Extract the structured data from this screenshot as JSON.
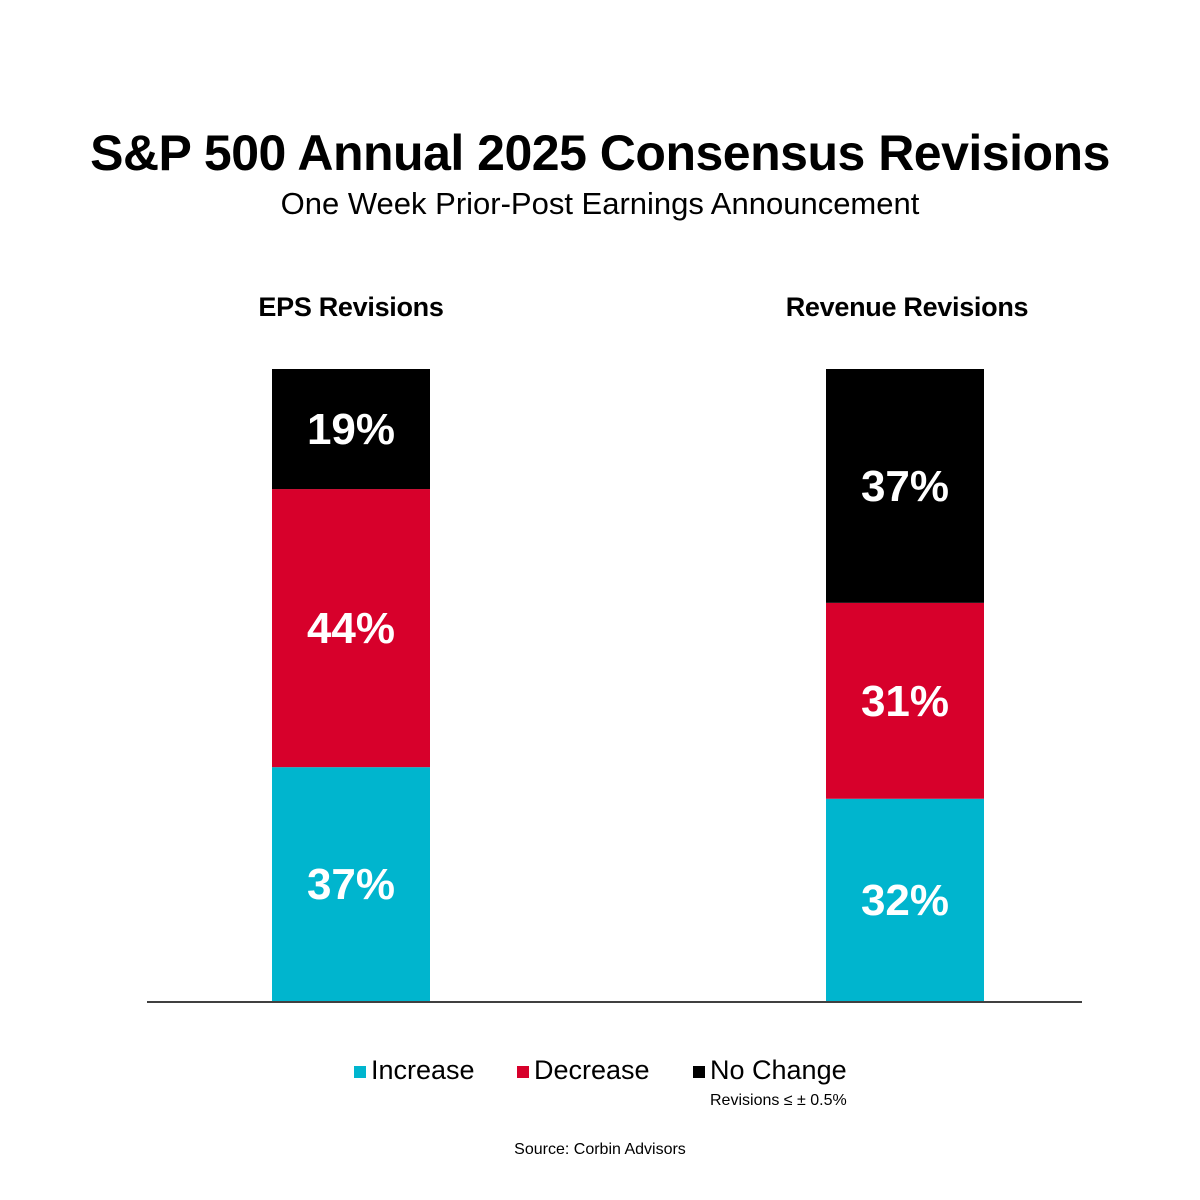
{
  "chart_data": {
    "type": "bar",
    "stacked": true,
    "title": "S&P 500 Annual 2025 Consensus Revisions",
    "subtitle": "One Week Prior-Post Earnings Announcement",
    "categories": [
      "EPS Revisions",
      "Revenue Revisions"
    ],
    "series": [
      {
        "name": "Increase",
        "color": "#00B5CE",
        "values": [
          37,
          32
        ],
        "labels": [
          "37%",
          "32%"
        ]
      },
      {
        "name": "Decrease",
        "color": "#D7002B",
        "values": [
          44,
          31
        ],
        "labels": [
          "44%",
          "31%"
        ]
      },
      {
        "name": "No Change",
        "color": "#000000",
        "values": [
          19,
          37
        ],
        "labels": [
          "19%",
          "37%"
        ]
      }
    ],
    "xlabel": "",
    "ylabel": "",
    "ylim": [
      0,
      100
    ],
    "grid": false,
    "legend_position": "bottom",
    "legend_note": "Revisions ≤ ± 0.5%",
    "source": "Source: Corbin Advisors"
  }
}
